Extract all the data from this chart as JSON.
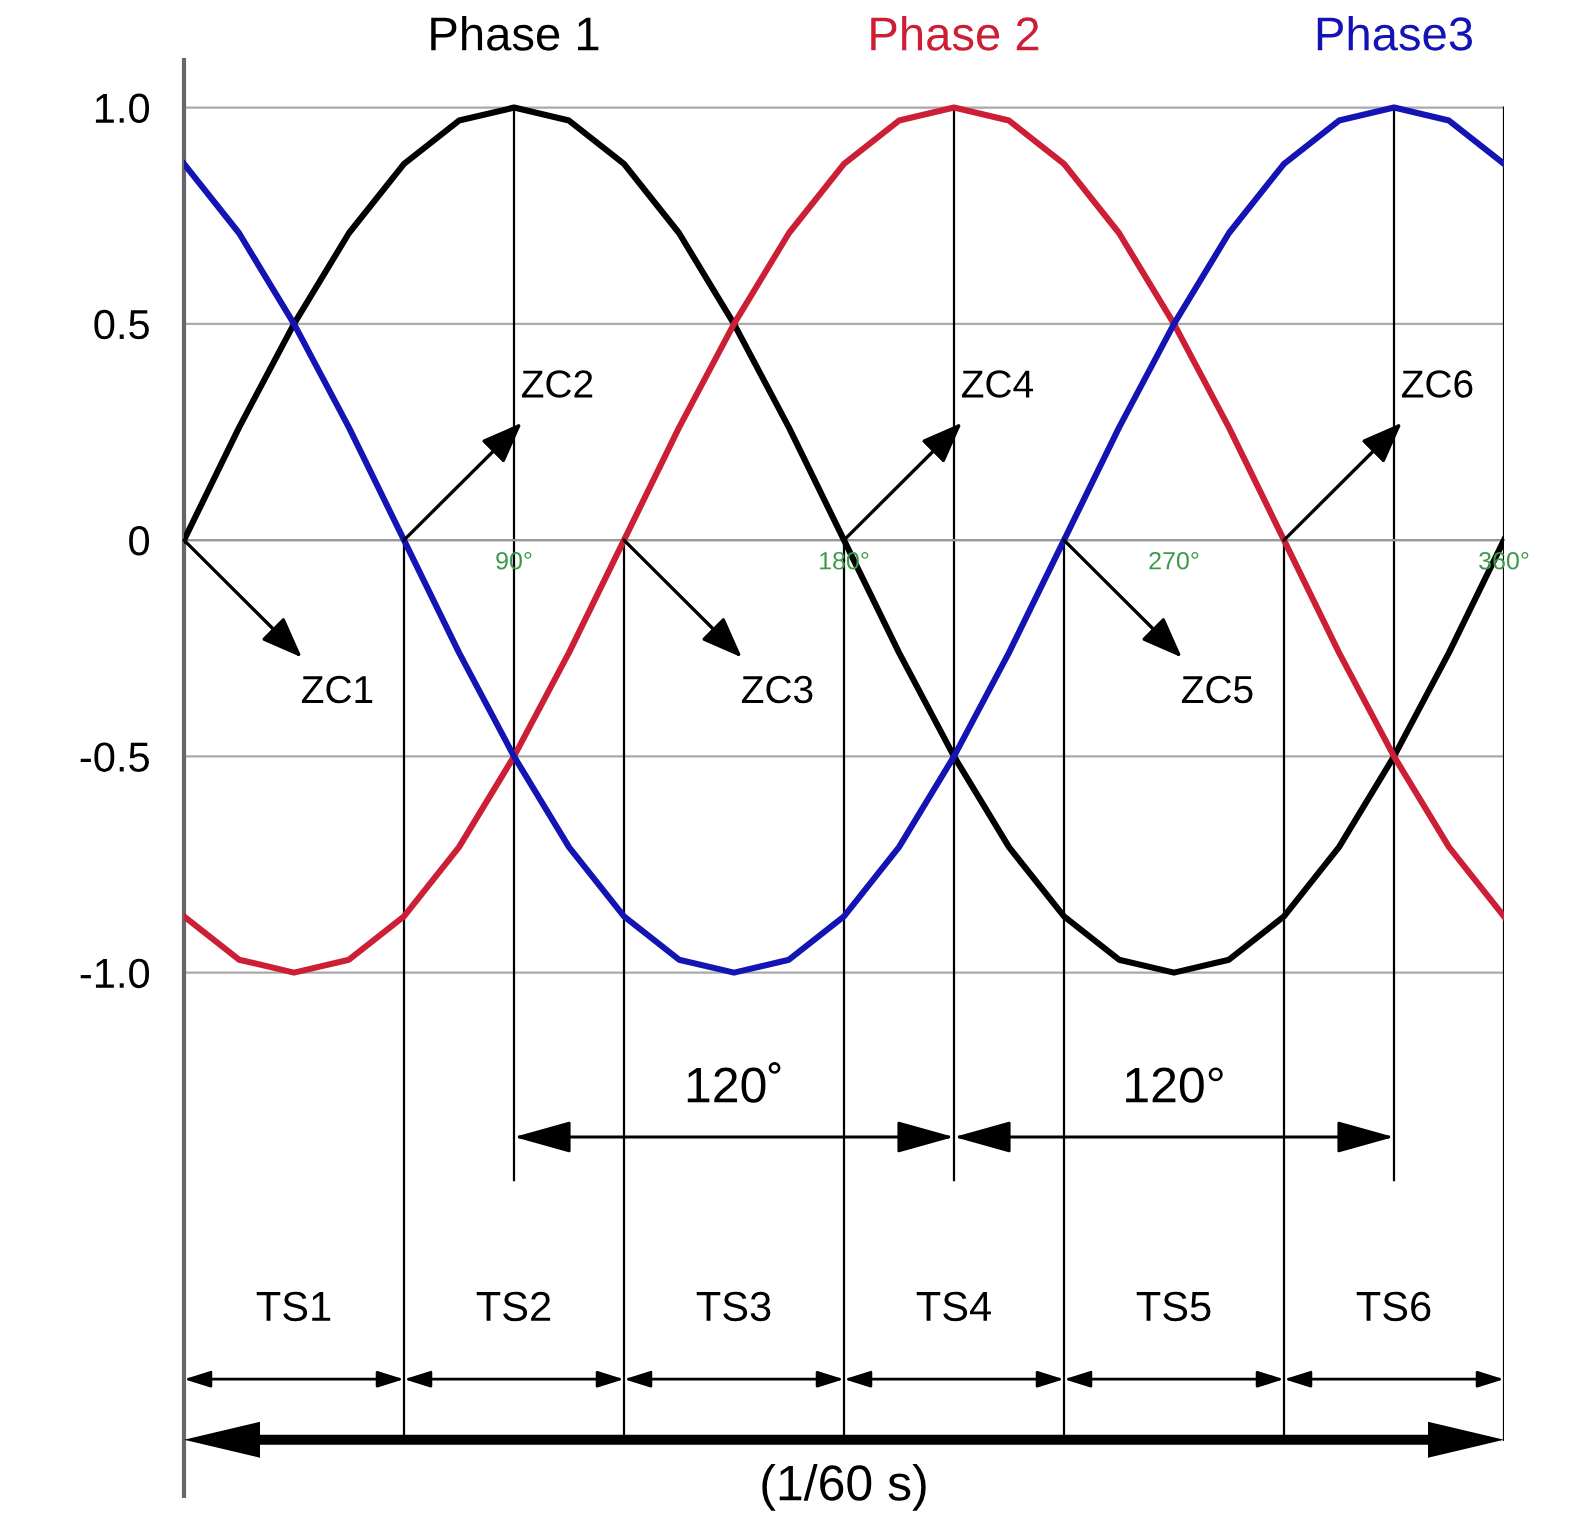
{
  "chart_data": {
    "type": "line",
    "x": [
      0,
      15,
      30,
      45,
      60,
      75,
      90,
      105,
      120,
      135,
      150,
      165,
      180,
      195,
      210,
      225,
      240,
      255,
      270,
      285,
      300,
      315,
      330,
      345,
      360
    ],
    "series": [
      {
        "name": "Phase 1",
        "color": "#000000",
        "values": [
          0,
          0.26,
          0.5,
          0.71,
          0.87,
          0.97,
          1,
          0.97,
          0.87,
          0.71,
          0.5,
          0.26,
          0,
          -0.26,
          -0.5,
          -0.71,
          -0.87,
          -0.97,
          -1,
          -0.97,
          -0.87,
          -0.71,
          -0.5,
          -0.26,
          0
        ]
      },
      {
        "name": "Phase 2",
        "color": "#cc1f36",
        "values": [
          -0.87,
          -0.97,
          -1,
          -0.97,
          -0.87,
          -0.71,
          -0.5,
          -0.26,
          0,
          0.26,
          0.5,
          0.71,
          0.87,
          0.97,
          1,
          0.97,
          0.87,
          0.71,
          0.5,
          0.26,
          0,
          -0.26,
          -0.5,
          -0.71,
          -0.87
        ]
      },
      {
        "name": "Phase3",
        "color": "#1414b4",
        "values": [
          0.87,
          0.71,
          0.5,
          0.26,
          0,
          -0.26,
          -0.5,
          -0.71,
          -0.87,
          -0.97,
          -1,
          -0.97,
          -0.87,
          -0.71,
          -0.5,
          -0.26,
          0,
          0.26,
          0.5,
          0.71,
          0.87,
          0.97,
          1,
          0.97,
          0.87
        ]
      }
    ],
    "xlim": [
      0,
      360
    ],
    "ylim": [
      -2.21,
      1.11
    ],
    "xticks": [
      {
        "value": 90,
        "label": "90°"
      },
      {
        "value": 180,
        "label": "180°"
      },
      {
        "value": 270,
        "label": "270°"
      },
      {
        "value": 360,
        "label": "360°"
      }
    ],
    "yticks": [
      {
        "value": 1,
        "label": "1.0"
      },
      0.5,
      0,
      {
        "value": -0.5,
        "label": "-0.5"
      },
      {
        "value": -1,
        "label": "-1.0"
      }
    ],
    "grid": "y",
    "legend": false,
    "marker": "none",
    "line_style": "solid",
    "ref_lines": [
      {
        "axis": "x",
        "value": 60
      },
      {
        "axis": "x",
        "value": 90
      },
      {
        "axis": "x",
        "value": 120
      },
      {
        "axis": "x",
        "value": 180
      },
      {
        "axis": "x",
        "value": 210
      },
      {
        "axis": "x",
        "value": 240
      },
      {
        "axis": "x",
        "value": 300
      },
      {
        "axis": "x",
        "value": 330
      },
      {
        "axis": "x",
        "value": 360
      }
    ],
    "annotations": [
      {
        "text": "ZC1",
        "x": 0,
        "y": 0
      },
      {
        "text": "ZC2",
        "x": 60,
        "y": 0
      },
      {
        "text": "ZC3",
        "x": 120,
        "y": 0
      },
      {
        "text": "ZC4",
        "x": 180,
        "y": 0
      },
      {
        "text": "ZC5",
        "x": 240,
        "y": 0
      },
      {
        "text": "ZC6",
        "x": 300,
        "y": 0
      },
      "120˚",
      "120°",
      "TS1",
      "TS2",
      "TS3",
      "TS4",
      "TS5",
      "TS6",
      "(1/60 s)"
    ]
  }
}
